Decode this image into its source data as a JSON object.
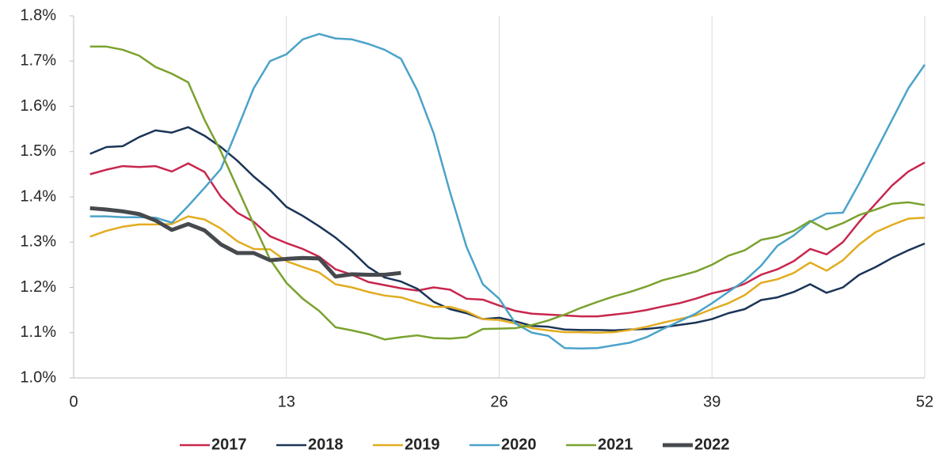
{
  "chart_data": {
    "type": "line",
    "x": [
      1,
      2,
      3,
      4,
      5,
      6,
      7,
      8,
      9,
      10,
      11,
      12,
      13,
      14,
      15,
      16,
      17,
      18,
      19,
      20,
      21,
      22,
      23,
      24,
      25,
      26,
      27,
      28,
      29,
      30,
      31,
      32,
      33,
      34,
      35,
      36,
      37,
      38,
      39,
      40,
      41,
      42,
      43,
      44,
      45,
      46,
      47,
      48,
      49,
      50,
      51,
      52
    ],
    "series": [
      {
        "name": "2017",
        "color": "#c8264d",
        "width": 2.5,
        "values": [
          1.45,
          1.46,
          1.468,
          1.466,
          1.468,
          1.456,
          1.474,
          1.455,
          1.4,
          1.365,
          1.345,
          1.313,
          1.298,
          1.285,
          1.268,
          1.24,
          1.228,
          1.212,
          1.205,
          1.198,
          1.193,
          1.2,
          1.195,
          1.175,
          1.173,
          1.16,
          1.148,
          1.142,
          1.14,
          1.138,
          1.136,
          1.136,
          1.14,
          1.144,
          1.15,
          1.158,
          1.165,
          1.175,
          1.187,
          1.195,
          1.208,
          1.228,
          1.24,
          1.258,
          1.285,
          1.273,
          1.3,
          1.345,
          1.385,
          1.425,
          1.456,
          1.476
        ]
      },
      {
        "name": "2018",
        "color": "#1b3557",
        "width": 2.5,
        "values": [
          1.495,
          1.51,
          1.512,
          1.532,
          1.547,
          1.542,
          1.554,
          1.535,
          1.51,
          1.48,
          1.445,
          1.415,
          1.378,
          1.358,
          1.335,
          1.31,
          1.28,
          1.245,
          1.222,
          1.213,
          1.197,
          1.168,
          1.152,
          1.143,
          1.13,
          1.133,
          1.125,
          1.115,
          1.113,
          1.107,
          1.106,
          1.106,
          1.105,
          1.107,
          1.108,
          1.112,
          1.117,
          1.122,
          1.13,
          1.143,
          1.152,
          1.172,
          1.178,
          1.19,
          1.207,
          1.188,
          1.2,
          1.228,
          1.245,
          1.265,
          1.282,
          1.297
        ]
      },
      {
        "name": "2019",
        "color": "#e2ac1f",
        "width": 2.5,
        "values": [
          1.312,
          1.325,
          1.334,
          1.339,
          1.339,
          1.34,
          1.357,
          1.35,
          1.33,
          1.302,
          1.285,
          1.284,
          1.258,
          1.245,
          1.233,
          1.207,
          1.2,
          1.19,
          1.182,
          1.178,
          1.167,
          1.157,
          1.157,
          1.147,
          1.13,
          1.128,
          1.12,
          1.11,
          1.105,
          1.101,
          1.101,
          1.1,
          1.101,
          1.106,
          1.113,
          1.122,
          1.13,
          1.138,
          1.152,
          1.165,
          1.183,
          1.21,
          1.218,
          1.232,
          1.255,
          1.237,
          1.26,
          1.295,
          1.322,
          1.338,
          1.352,
          1.354
        ]
      },
      {
        "name": "2020",
        "color": "#4ba3c9",
        "width": 2.5,
        "values": [
          1.357,
          1.357,
          1.355,
          1.355,
          1.354,
          1.343,
          1.38,
          1.42,
          1.462,
          1.55,
          1.64,
          1.7,
          1.715,
          1.748,
          1.76,
          1.75,
          1.748,
          1.738,
          1.725,
          1.705,
          1.635,
          1.54,
          1.41,
          1.29,
          1.207,
          1.175,
          1.12,
          1.1,
          1.093,
          1.066,
          1.065,
          1.066,
          1.072,
          1.078,
          1.09,
          1.108,
          1.125,
          1.142,
          1.165,
          1.19,
          1.215,
          1.248,
          1.292,
          1.315,
          1.345,
          1.363,
          1.365,
          1.43,
          1.5,
          1.57,
          1.64,
          1.692
        ]
      },
      {
        "name": "2021",
        "color": "#7aa22e",
        "width": 2.5,
        "values": [
          1.732,
          1.732,
          1.725,
          1.712,
          1.687,
          1.672,
          1.653,
          1.57,
          1.5,
          1.42,
          1.34,
          1.262,
          1.21,
          1.175,
          1.148,
          1.112,
          1.105,
          1.097,
          1.085,
          1.09,
          1.094,
          1.088,
          1.087,
          1.09,
          1.108,
          1.109,
          1.11,
          1.117,
          1.127,
          1.14,
          1.155,
          1.168,
          1.18,
          1.19,
          1.202,
          1.216,
          1.225,
          1.235,
          1.25,
          1.27,
          1.282,
          1.305,
          1.312,
          1.325,
          1.347,
          1.328,
          1.342,
          1.36,
          1.372,
          1.385,
          1.388,
          1.382
        ]
      },
      {
        "name": "2022",
        "color": "#46494d",
        "width": 5,
        "values": [
          1.375,
          1.372,
          1.368,
          1.362,
          1.348,
          1.327,
          1.34,
          1.326,
          1.295,
          1.276,
          1.276,
          1.26,
          1.263,
          1.265,
          1.264,
          1.224,
          1.229,
          1.228,
          1.228,
          1.232,
          null,
          null,
          null,
          null,
          null,
          null,
          null,
          null,
          null,
          null,
          null,
          null,
          null,
          null,
          null,
          null,
          null,
          null,
          null,
          null,
          null,
          null,
          null,
          null,
          null,
          null,
          null,
          null,
          null,
          null,
          null,
          null
        ]
      }
    ],
    "xlim": [
      0,
      52
    ],
    "xticks": [
      0,
      13,
      26,
      39,
      52
    ],
    "ylim": [
      1.0,
      1.8
    ],
    "yticks": [
      {
        "value": 1.0,
        "label": "1.0%"
      },
      {
        "value": 1.1,
        "label": "1.1%"
      },
      {
        "value": 1.2,
        "label": "1.2%"
      },
      {
        "value": 1.3,
        "label": "1.3%"
      },
      {
        "value": 1.4,
        "label": "1.4%"
      },
      {
        "value": 1.5,
        "label": "1.5%"
      },
      {
        "value": 1.6,
        "label": "1.6%"
      },
      {
        "value": 1.7,
        "label": "1.7%"
      },
      {
        "value": 1.8,
        "label": "1.8%"
      }
    ],
    "grid": "x",
    "legend": "bottom"
  }
}
